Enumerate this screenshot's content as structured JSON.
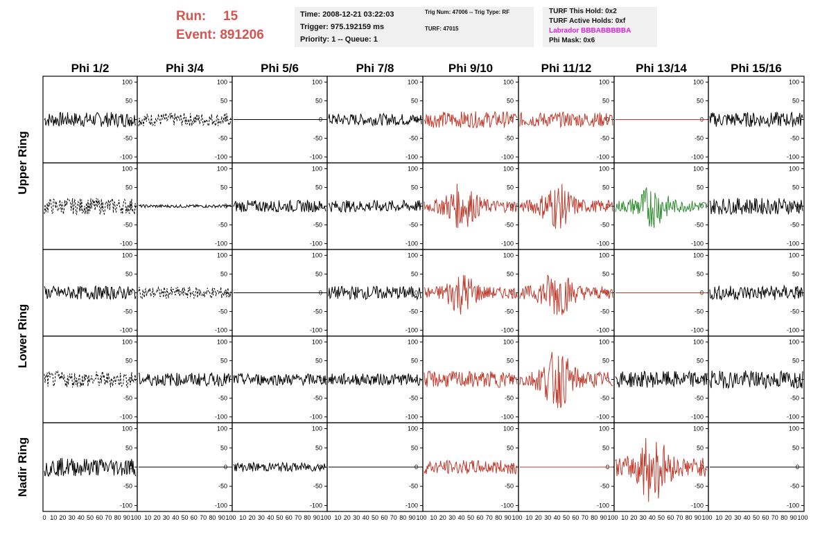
{
  "header": {
    "run_label": "Run:",
    "run_value": "15",
    "event_label": "Event:",
    "event_value": "891206",
    "time": "Time: 2008-12-21 03:22:03",
    "trigger": "Trigger: 975.192159 ms",
    "priority": "Priority: 1 -- Queue: 1",
    "trig_num": "Trig Num: 47006 -- Trig Type: RF",
    "turf": "TURF: 47015",
    "turf_this_hold": "TURF This Hold: 0x2",
    "turf_active_holds": "TURF Active Holds: 0xf",
    "labrador": "Labrador BBBABBBBBA",
    "phi_mask": "Phi Mask: 0x6",
    "run_color": "#d9534f",
    "labrador_color": "#e020e0"
  },
  "chart_data": {
    "type": "line",
    "columns": [
      "Phi 1/2",
      "Phi 3/4",
      "Phi 5/6",
      "Phi 7/8",
      "Phi 9/10",
      "Phi 11/12",
      "Phi 13/14",
      "Phi 15/16"
    ],
    "ring_labels": [
      {
        "name": "Upper Ring",
        "rows": [
          0,
          1
        ]
      },
      {
        "name": "Lower Ring",
        "rows": [
          2,
          3
        ]
      },
      {
        "name": "Nadir Ring",
        "rows": [
          4
        ]
      }
    ],
    "ylim": [
      -110,
      110
    ],
    "yticks": [
      -100,
      -50,
      0,
      50,
      100
    ],
    "ytick_labels": [
      "-100",
      "-50",
      "0",
      "50",
      "100"
    ],
    "xlim": [
      0,
      100
    ],
    "xticks": [
      0,
      10,
      20,
      30,
      40,
      50,
      60,
      70,
      80,
      90,
      100
    ],
    "xtick_labels": [
      "0",
      "10",
      "20",
      "30",
      "40",
      "50",
      "60",
      "70",
      "80",
      "90",
      "100"
    ],
    "colors": {
      "normal": "#000000",
      "triggered": "#c0392b",
      "l3": "#2e8b2e"
    },
    "waveforms": [
      [
        {
          "kind": "noise",
          "color": "normal",
          "amp": 20
        },
        {
          "kind": "dashed",
          "color": "normal",
          "amp": 18
        },
        {
          "kind": "flat",
          "color": "normal",
          "amp": 0
        },
        {
          "kind": "noise",
          "color": "normal",
          "amp": 16
        },
        {
          "kind": "noise",
          "color": "triggered",
          "amp": 22
        },
        {
          "kind": "noise",
          "color": "triggered",
          "amp": 20
        },
        {
          "kind": "flat",
          "color": "triggered",
          "amp": 0
        },
        {
          "kind": "noise",
          "color": "normal",
          "amp": 20
        }
      ],
      [
        {
          "kind": "dashed",
          "color": "normal",
          "amp": 22
        },
        {
          "kind": "noise",
          "color": "normal",
          "amp": 4
        },
        {
          "kind": "noise",
          "color": "normal",
          "amp": 16
        },
        {
          "kind": "noise",
          "color": "normal",
          "amp": 16
        },
        {
          "kind": "pulse",
          "color": "triggered",
          "amp": 30
        },
        {
          "kind": "pulse",
          "color": "triggered",
          "amp": 30
        },
        {
          "kind": "pulse",
          "color": "l3",
          "amp": 28
        },
        {
          "kind": "noise",
          "color": "normal",
          "amp": 22
        }
      ],
      [
        {
          "kind": "noise",
          "color": "normal",
          "amp": 18
        },
        {
          "kind": "dashed",
          "color": "normal",
          "amp": 16
        },
        {
          "kind": "flat",
          "color": "normal",
          "amp": 0
        },
        {
          "kind": "noise",
          "color": "normal",
          "amp": 18
        },
        {
          "kind": "pulse",
          "color": "triggered",
          "amp": 28
        },
        {
          "kind": "pulse",
          "color": "triggered",
          "amp": 32
        },
        {
          "kind": "flat",
          "color": "triggered",
          "amp": 0
        },
        {
          "kind": "noise",
          "color": "normal",
          "amp": 20
        }
      ],
      [
        {
          "kind": "dashed",
          "color": "normal",
          "amp": 22
        },
        {
          "kind": "noise",
          "color": "normal",
          "amp": 18
        },
        {
          "kind": "noise",
          "color": "normal",
          "amp": 16
        },
        {
          "kind": "noise",
          "color": "normal",
          "amp": 16
        },
        {
          "kind": "noise",
          "color": "triggered",
          "amp": 22
        },
        {
          "kind": "pulse",
          "color": "triggered",
          "amp": 38
        },
        {
          "kind": "noise",
          "color": "normal",
          "amp": 22
        },
        {
          "kind": "noise",
          "color": "normal",
          "amp": 24
        }
      ],
      [
        {
          "kind": "noise",
          "color": "normal",
          "amp": 24
        },
        {
          "kind": "flat",
          "color": "normal",
          "amp": 0
        },
        {
          "kind": "noise",
          "color": "normal",
          "amp": 12
        },
        {
          "kind": "flat",
          "color": "normal",
          "amp": 0
        },
        {
          "kind": "noise",
          "color": "triggered",
          "amp": 18
        },
        {
          "kind": "flat",
          "color": "triggered",
          "amp": 0
        },
        {
          "kind": "pulse",
          "color": "triggered",
          "amp": 45
        },
        {
          "kind": "flat",
          "color": "normal",
          "amp": 0
        }
      ]
    ]
  }
}
